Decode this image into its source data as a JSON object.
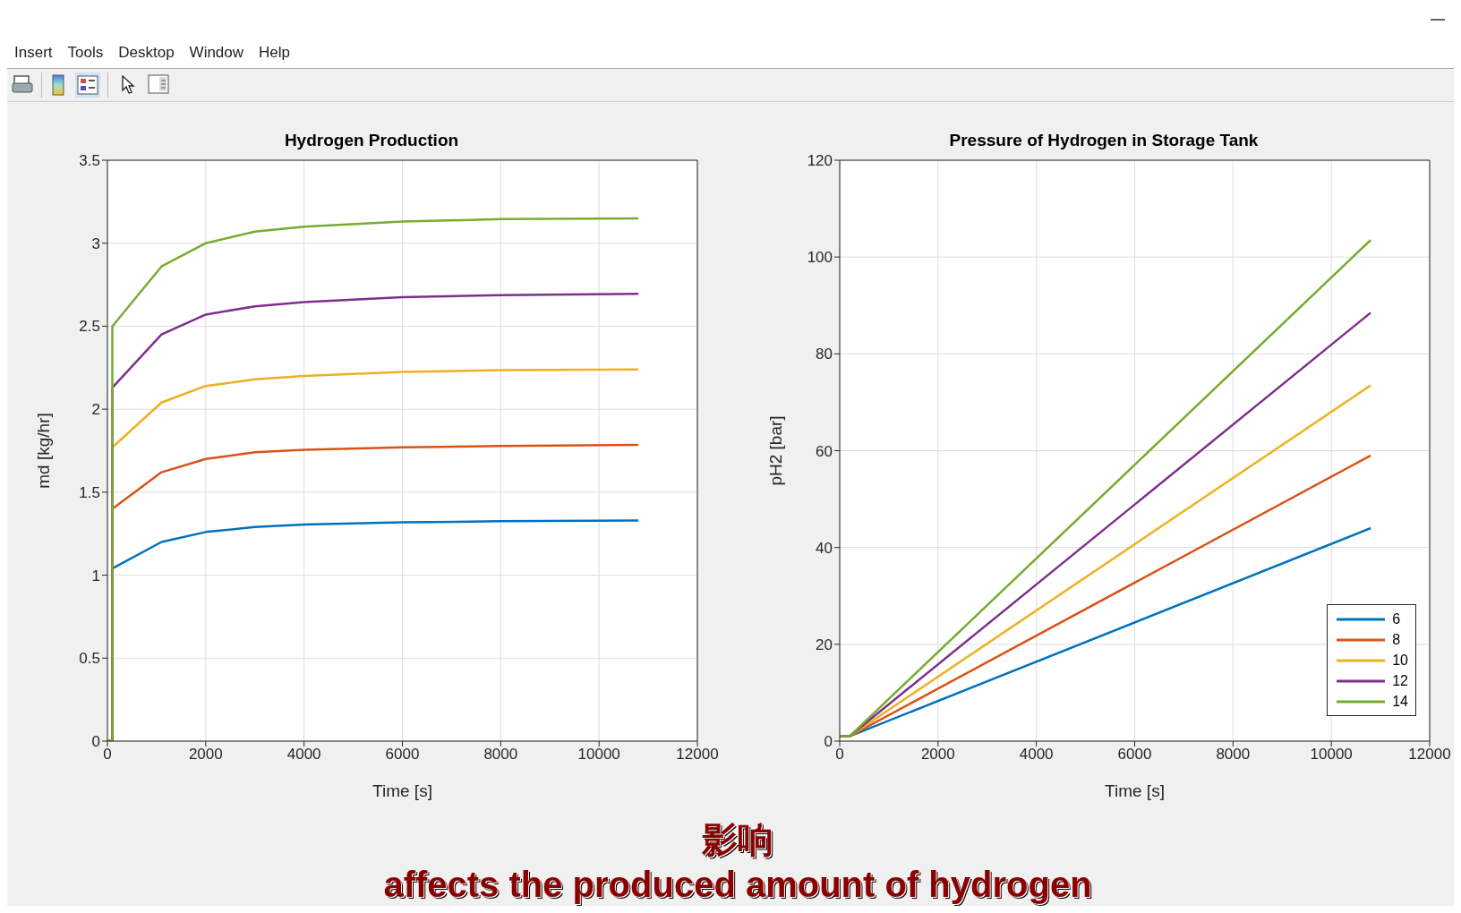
{
  "chart_data": [
    {
      "type": "other",
      "annotations": [
        "Insert",
        "Tools",
        "Desktop",
        "Window",
        "Help"
      ]
    },
    {
      "type": "line",
      "title": "Hydrogen Production",
      "xlabel": "Time [s]",
      "ylabel": "md [kg/hr]",
      "xlim": [
        0,
        12000
      ],
      "xticks": [
        0,
        2000,
        4000,
        6000,
        8000,
        10000,
        12000
      ],
      "ylim": [
        0,
        3.5
      ],
      "yticks": [
        0,
        0.5,
        1,
        1.5,
        2,
        2.5,
        3,
        3.5
      ],
      "grid": true,
      "legend": false,
      "marker": "none",
      "line_style": "solid",
      "series": [
        {
          "color": "#0072bd",
          "x": [
            0,
            100,
            100,
            1100,
            2000,
            3000,
            4000,
            6000,
            8000,
            10800
          ],
          "values": [
            0,
            0,
            1.04,
            1.2,
            1.26,
            1.29,
            1.305,
            1.318,
            1.325,
            1.33
          ]
        },
        {
          "color": "#d95319",
          "x": [
            0,
            100,
            100,
            1100,
            2000,
            3000,
            4000,
            6000,
            8000,
            10800
          ],
          "values": [
            0,
            0,
            1.4,
            1.62,
            1.7,
            1.74,
            1.755,
            1.77,
            1.778,
            1.785
          ]
        },
        {
          "color": "#edb120",
          "x": [
            0,
            100,
            100,
            1100,
            2000,
            3000,
            4000,
            6000,
            8000,
            10800
          ],
          "values": [
            0,
            0,
            1.77,
            2.04,
            2.14,
            2.18,
            2.2,
            2.225,
            2.235,
            2.24
          ]
        },
        {
          "color": "#7e2f8e",
          "x": [
            0,
            100,
            100,
            1100,
            2000,
            3000,
            4000,
            6000,
            8000,
            10800
          ],
          "values": [
            0,
            0,
            2.13,
            2.45,
            2.57,
            2.62,
            2.645,
            2.675,
            2.687,
            2.695
          ]
        },
        {
          "color": "#77ac30",
          "x": [
            0,
            100,
            100,
            1100,
            2000,
            3000,
            4000,
            6000,
            8000,
            10800
          ],
          "values": [
            0,
            0,
            2.5,
            2.86,
            3.0,
            3.07,
            3.1,
            3.13,
            3.145,
            3.15
          ]
        }
      ]
    },
    {
      "type": "line",
      "title": "Pressure of Hydrogen in Storage Tank",
      "xlabel": "Time [s]",
      "ylabel": "pH2 [bar]",
      "xlim": [
        0,
        12000
      ],
      "xticks": [
        0,
        2000,
        4000,
        6000,
        8000,
        10000,
        12000
      ],
      "ylim": [
        0,
        120
      ],
      "yticks": [
        0,
        20,
        40,
        60,
        80,
        100,
        120
      ],
      "grid": true,
      "legend": "bottom right",
      "marker": "none",
      "line_style": "solid",
      "series": [
        {
          "name": "6",
          "color": "#0072bd",
          "x": [
            0,
            200,
            10800
          ],
          "values": [
            1,
            1,
            44
          ]
        },
        {
          "name": "8",
          "color": "#d95319",
          "x": [
            0,
            200,
            10800
          ],
          "values": [
            1,
            1,
            59
          ]
        },
        {
          "name": "10",
          "color": "#edb120",
          "x": [
            0,
            200,
            10800
          ],
          "values": [
            1,
            1,
            73.5
          ]
        },
        {
          "name": "12",
          "color": "#7e2f8e",
          "x": [
            0,
            200,
            10800
          ],
          "values": [
            1,
            1,
            88.5
          ]
        },
        {
          "name": "14",
          "color": "#77ac30",
          "x": [
            0,
            200,
            10800
          ],
          "values": [
            1,
            1,
            103.5
          ]
        }
      ]
    },
    {
      "type": "other",
      "annotations": [
        "影响",
        "affects the produced amount of hydrogen"
      ]
    }
  ]
}
